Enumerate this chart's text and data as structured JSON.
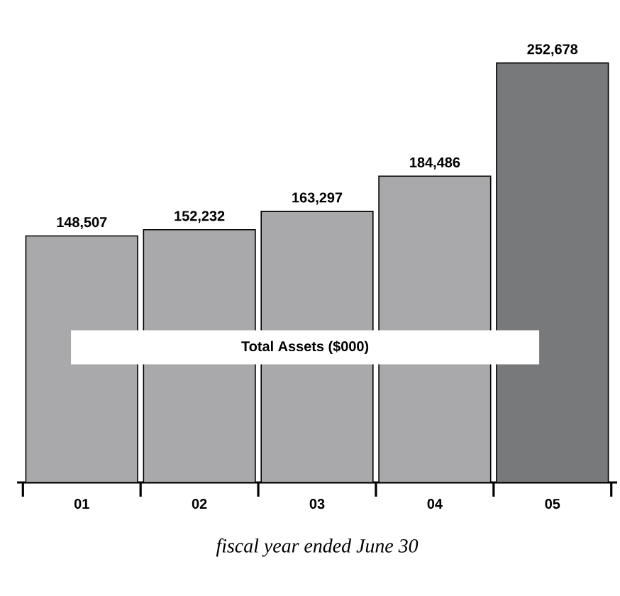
{
  "chart_data": {
    "type": "bar",
    "title": "Total Assets ($000)",
    "xlabel": "fiscal year ended June 30",
    "categories": [
      "01",
      "02",
      "03",
      "04",
      "05"
    ],
    "values": [
      148507,
      152232,
      163297,
      184486,
      252678
    ],
    "value_labels": [
      "148,507",
      "152,232",
      "163,297",
      "184,486",
      "252,678"
    ],
    "colors": [
      "#a9a8ab",
      "#a9a8ab",
      "#a9a8ab",
      "#a9a8ab",
      "#77797b"
    ],
    "tick_labels": "x"
  }
}
